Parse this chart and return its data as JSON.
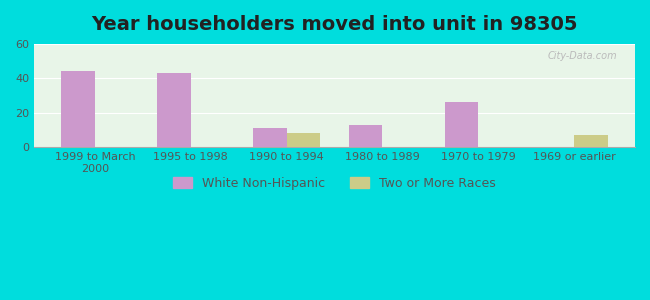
{
  "title": "Year householders moved into unit in 98305",
  "categories": [
    "1999 to March\n2000",
    "1995 to 1998",
    "1990 to 1994",
    "1980 to 1989",
    "1970 to 1979",
    "1969 or earlier"
  ],
  "white_non_hispanic": [
    44,
    43,
    11,
    13,
    26,
    0
  ],
  "two_or_more_races": [
    0,
    0,
    8,
    0,
    0,
    7
  ],
  "bar_width": 0.35,
  "white_color": "#cc99cc",
  "two_races_color": "#cccc88",
  "ylim": [
    0,
    60
  ],
  "yticks": [
    0,
    20,
    40,
    60
  ],
  "background_outer": "#00dddd",
  "background_plot_top": "#e8f5e8",
  "background_plot_bottom": "#f5f5e8",
  "title_fontsize": 14,
  "tick_fontsize": 8,
  "legend_fontsize": 9
}
